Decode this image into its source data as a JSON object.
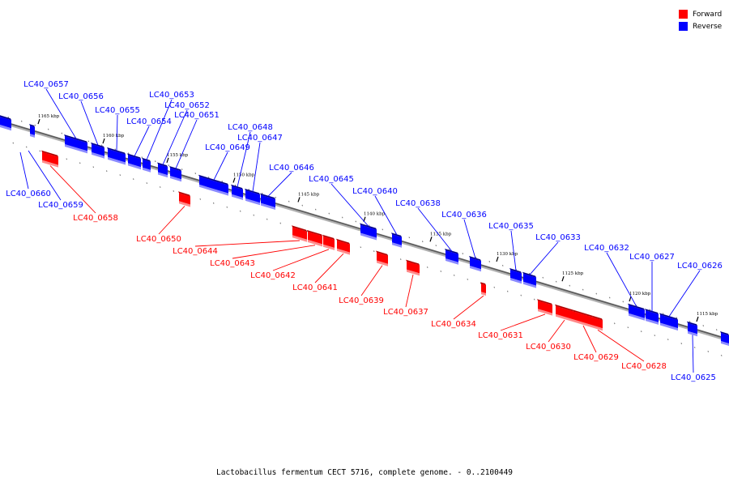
{
  "caption": "Lactobacillus fermentum CECT 5716, complete genome. - 0..2100449",
  "legend": [
    {
      "label": "Forward",
      "color": "#ff0000"
    },
    {
      "label": "Reverse",
      "color": "#0000ff"
    }
  ],
  "ticks": [
    "1165 kbp",
    "1160 kbp",
    "1155 kbp",
    "1150 kbp",
    "1145 kbp",
    "1140 kbp",
    "1135 kbp",
    "1130 kbp",
    "1125 kbp",
    "1120 kbp",
    "1115 kbp"
  ],
  "genes": [
    {
      "id": "LC40_0657",
      "strand": "reverse"
    },
    {
      "id": "LC40_0656",
      "strand": "reverse"
    },
    {
      "id": "LC40_0655",
      "strand": "reverse"
    },
    {
      "id": "LC40_0654",
      "strand": "reverse"
    },
    {
      "id": "LC40_0653",
      "strand": "reverse"
    },
    {
      "id": "LC40_0652",
      "strand": "reverse"
    },
    {
      "id": "LC40_0651",
      "strand": "reverse"
    },
    {
      "id": "LC40_0648",
      "strand": "reverse"
    },
    {
      "id": "LC40_0647",
      "strand": "reverse"
    },
    {
      "id": "LC40_0649",
      "strand": "reverse"
    },
    {
      "id": "LC40_0646",
      "strand": "reverse"
    },
    {
      "id": "LC40_0645",
      "strand": "reverse"
    },
    {
      "id": "LC40_0640",
      "strand": "reverse"
    },
    {
      "id": "LC40_0638",
      "strand": "reverse"
    },
    {
      "id": "LC40_0636",
      "strand": "reverse"
    },
    {
      "id": "LC40_0635",
      "strand": "reverse"
    },
    {
      "id": "LC40_0633",
      "strand": "reverse"
    },
    {
      "id": "LC40_0632",
      "strand": "reverse"
    },
    {
      "id": "LC40_0627",
      "strand": "reverse"
    },
    {
      "id": "LC40_0626",
      "strand": "reverse"
    },
    {
      "id": "LC40_0660",
      "strand": "reverse"
    },
    {
      "id": "LC40_0659",
      "strand": "reverse"
    },
    {
      "id": "LC40_0625",
      "strand": "reverse"
    },
    {
      "id": "LC40_0658",
      "strand": "forward"
    },
    {
      "id": "LC40_0650",
      "strand": "forward"
    },
    {
      "id": "LC40_0644",
      "strand": "forward"
    },
    {
      "id": "LC40_0643",
      "strand": "forward"
    },
    {
      "id": "LC40_0642",
      "strand": "forward"
    },
    {
      "id": "LC40_0641",
      "strand": "forward"
    },
    {
      "id": "LC40_0639",
      "strand": "forward"
    },
    {
      "id": "LC40_0637",
      "strand": "forward"
    },
    {
      "id": "LC40_0634",
      "strand": "forward"
    },
    {
      "id": "LC40_0631",
      "strand": "forward"
    },
    {
      "id": "LC40_0630",
      "strand": "forward"
    },
    {
      "id": "LC40_0629",
      "strand": "forward"
    },
    {
      "id": "LC40_0628",
      "strand": "forward"
    }
  ]
}
